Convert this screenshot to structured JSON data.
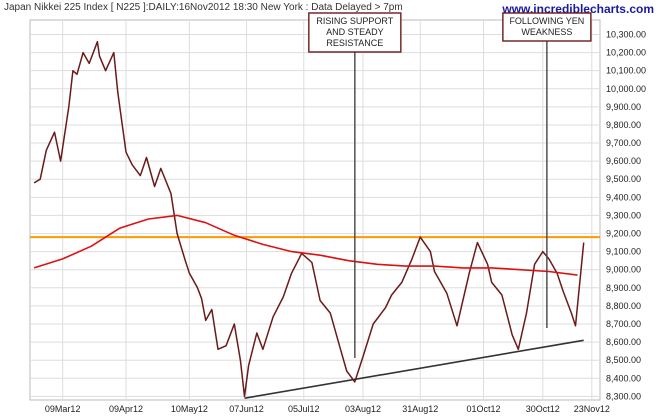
{
  "header": {
    "title": "Japan Nikkei 225 Index [ N225 ]:DAILY:16Nov2012 18:30 New York : Data Delayed > 7pm",
    "site": "www.incrediblecharts.com"
  },
  "colors": {
    "price": "#6b1a1a",
    "moving_average": "#dd1111",
    "resistance": "#ff9900",
    "trendline": "#333333",
    "annotation_line": "#444444",
    "annotation_border": "#6b1a1a",
    "grid": "#dddddd"
  },
  "chart_data": {
    "type": "line",
    "x_tick_labels": [
      "09Mar12",
      "09Apr12",
      "10May12",
      "07Jun12",
      "05Jul12",
      "03Aug12",
      "31Aug12",
      "01Oct12",
      "30Oct12",
      "23Nov12"
    ],
    "y_tick_labels": [
      "8,300.00",
      "8,400.00",
      "8,500.00",
      "8,600.00",
      "8,700.00",
      "8,800.00",
      "8,900.00",
      "9,000.00",
      "9,100.00",
      "9,200.00",
      "9,300.00",
      "9,400.00",
      "9,500.00",
      "9,600.00",
      "9,700.00",
      "9,800.00",
      "9,900.00",
      "10,000.00",
      "10,100.00",
      "10,200.00",
      "10,300.00"
    ],
    "ylim": [
      8280,
      10380
    ],
    "xlim": [
      "2012-02-22",
      "2012-11-27"
    ],
    "grid": true,
    "series": [
      {
        "role": "price",
        "x": [
          "2012-02-24",
          "2012-02-27",
          "2012-03-01",
          "2012-03-05",
          "2012-03-08",
          "2012-03-12",
          "2012-03-14",
          "2012-03-16",
          "2012-03-19",
          "2012-03-22",
          "2012-03-26",
          "2012-03-27",
          "2012-03-30",
          "2012-04-03",
          "2012-04-05",
          "2012-04-09",
          "2012-04-12",
          "2012-04-16",
          "2012-04-19",
          "2012-04-23",
          "2012-04-26",
          "2012-05-01",
          "2012-05-04",
          "2012-05-08",
          "2012-05-10",
          "2012-05-14",
          "2012-05-16",
          "2012-05-18",
          "2012-05-21",
          "2012-05-24",
          "2012-05-28",
          "2012-06-01",
          "2012-06-04",
          "2012-06-06",
          "2012-06-08",
          "2012-06-12",
          "2012-06-15",
          "2012-06-20",
          "2012-06-25",
          "2012-06-29",
          "2012-07-04",
          "2012-07-09",
          "2012-07-13",
          "2012-07-18",
          "2012-07-23",
          "2012-07-26",
          "2012-07-30",
          "2012-08-03",
          "2012-08-08",
          "2012-08-14",
          "2012-08-17",
          "2012-08-22",
          "2012-08-27",
          "2012-08-31",
          "2012-09-05",
          "2012-09-07",
          "2012-09-13",
          "2012-09-18",
          "2012-09-24",
          "2012-09-28",
          "2012-10-03",
          "2012-10-05",
          "2012-10-10",
          "2012-10-15",
          "2012-10-18",
          "2012-10-22",
          "2012-10-26",
          "2012-10-30",
          "2012-11-02",
          "2012-11-06",
          "2012-11-09",
          "2012-11-13",
          "2012-11-15",
          "2012-11-19"
        ],
        "y": [
          9480,
          9500,
          9660,
          9760,
          9600,
          9900,
          10100,
          10080,
          10200,
          10140,
          10260,
          10180,
          10100,
          10200,
          9980,
          9650,
          9580,
          9520,
          9620,
          9460,
          9560,
          9420,
          9200,
          9050,
          8980,
          8900,
          8840,
          8720,
          8780,
          8560,
          8580,
          8700,
          8500,
          8300,
          8470,
          8650,
          8560,
          8740,
          8850,
          8980,
          9090,
          9040,
          8830,
          8760,
          8560,
          8440,
          8380,
          8520,
          8700,
          8790,
          8860,
          8930,
          9060,
          9180,
          9100,
          8990,
          8870,
          8690,
          8980,
          9150,
          9030,
          8930,
          8860,
          8640,
          8560,
          8760,
          9030,
          9100,
          9060,
          8980,
          8880,
          8760,
          8690,
          9150
        ]
      },
      {
        "role": "moving_average",
        "x": [
          "2012-02-24",
          "2012-03-09",
          "2012-03-23",
          "2012-04-06",
          "2012-04-20",
          "2012-05-04",
          "2012-05-18",
          "2012-06-01",
          "2012-06-15",
          "2012-06-29",
          "2012-07-13",
          "2012-07-27",
          "2012-08-10",
          "2012-08-24",
          "2012-09-07",
          "2012-09-21",
          "2012-10-05",
          "2012-10-19",
          "2012-11-02",
          "2012-11-16"
        ],
        "y": [
          9010,
          9060,
          9130,
          9230,
          9280,
          9300,
          9260,
          9190,
          9140,
          9100,
          9080,
          9050,
          9030,
          9020,
          9020,
          9010,
          9010,
          9000,
          8990,
          8970
        ]
      }
    ],
    "resistance_level": 9180,
    "trendline": {
      "x": [
        "2012-06-06",
        "2012-11-19"
      ],
      "y": [
        8290,
        8610
      ]
    },
    "annotations": [
      {
        "x": "2012-07-30",
        "lines": [
          "RISING SUPPORT",
          "AND STEADY",
          "RESISTANCE"
        ]
      },
      {
        "x": "2012-11-01",
        "lines": [
          "FOLLOWING YEN",
          "WEAKNESS"
        ]
      }
    ]
  }
}
